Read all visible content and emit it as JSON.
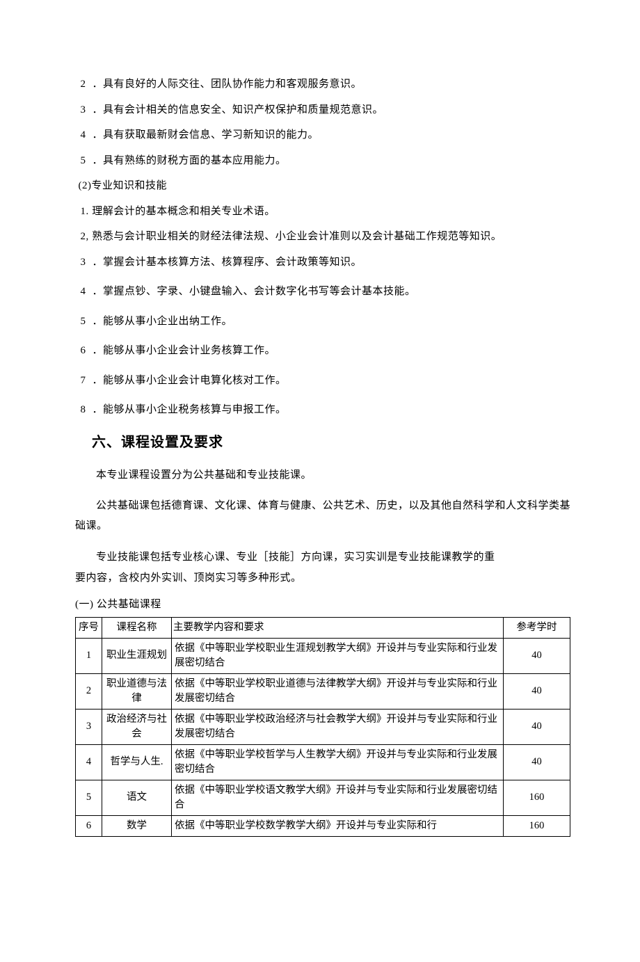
{
  "list_a": [
    {
      "n": "2",
      "text": "．具有良好的人际交往、团队协作能力和客观服务意识。"
    },
    {
      "n": "3",
      "text": "．具有会计相关的信息安全、知识产权保护和质量规范意识。"
    },
    {
      "n": "4",
      "text": "．具有获取最新财会信息、学习新知识的能力。"
    },
    {
      "n": "5",
      "text": "．具有熟练的财税方面的基本应用能力。"
    }
  ],
  "sub_heading": "(2)专业知识和技能",
  "list_b": [
    {
      "n": "1.",
      "text": "理解会计的基本概念和相关专业术语。",
      "sep": ""
    },
    {
      "n": "2,",
      "text": "熟悉与会计职业相关的财经法律法规、小企业会计准则以及会计基础工作规范等知识。",
      "sep": ""
    },
    {
      "n": "3",
      "text": "．掌握会计基本核算方法、核算程序、会计政策等知识。",
      "sep": " "
    },
    {
      "n": "4",
      "text": "．掌握点钞、字录、小键盘输入、会计数字化书写等会计基本技能。",
      "sep": " "
    },
    {
      "n": "5",
      "text": "．能够从事小企业出纳工作。",
      "sep": " "
    },
    {
      "n": "6",
      "text": "．能够从事小企业会计业务核算工作。",
      "sep": " "
    },
    {
      "n": "7",
      "text": "．能够从事小企业会计电算化核对工作。",
      "sep": " "
    },
    {
      "n": "8",
      "text": "．能够从事小企业税务核算与申报工作。",
      "sep": " "
    }
  ],
  "section_title": "六、课程设置及要求",
  "para1": "本专业课程设置分为公共基础和专业技能课。",
  "para2": "公共基础课包括德育课、文化课、体育与健康、公共艺术、历史，以及其他自然科学和人文科学类基础课。",
  "para3_line1": "专业技能课包括专业核心课、专业［技能］方向课，实习实训是专业技能课教学的重",
  "para3_line2": "要内容，含校内外实训、顶岗实习等多种形式。",
  "subsection": "(一) 公共基础课程",
  "table": {
    "headers": {
      "seq": "序号",
      "name": "课程名称",
      "content": "主要教学内容和要求",
      "hours": "参考学时"
    },
    "rows": [
      {
        "seq": "1",
        "name": "职业生涯规划",
        "content": "依据《中等职业学校职业生涯规划教学大纲》开设并与专业实际和行业发展密切结合",
        "hours": "40"
      },
      {
        "seq": "2",
        "name": "职业道德与法律",
        "content": "依据《中等职业学校职业道德与法律教学大纲》开设并与专业实际和行业发展密切结合",
        "hours": "40"
      },
      {
        "seq": "3",
        "name": "政治经济与社会",
        "content": "依据《中等职业学校政治经济与社会教学大纲》开设并与专业实际和行业发展密切结合",
        "hours": "40"
      },
      {
        "seq": "4",
        "name": "哲学与人生.",
        "content": "依据《中等职业学校哲学与人生教学大纲》开设并与专业实际和行业发展密切结合",
        "hours": "40"
      },
      {
        "seq": "5",
        "name": "语文",
        "content": "依据《中等职业学校语文教学大纲》开设并与专业实际和行业发展密切结合",
        "hours": "160"
      },
      {
        "seq": "6",
        "name": "数学",
        "content": "依据《中等职业学校数学教学大纲》开设并与专业实际和行",
        "hours": "160"
      }
    ]
  }
}
